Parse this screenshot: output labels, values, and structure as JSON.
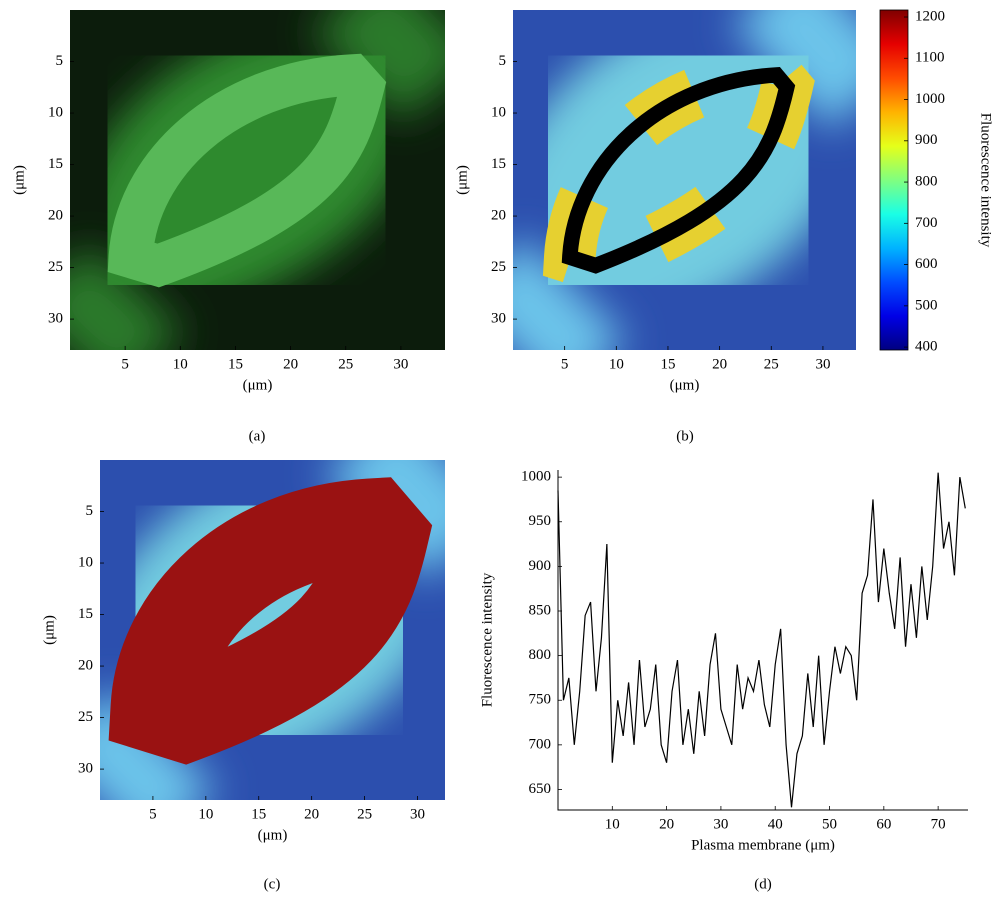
{
  "chart_data": [
    {
      "type": "image",
      "caption": "(a)",
      "xlabel": "(μm)",
      "ylabel": "(μm)",
      "xlim": [
        0,
        34
      ],
      "ylim": [
        0,
        33
      ],
      "xticks": [
        5,
        10,
        15,
        20,
        25,
        30
      ],
      "yticks": [
        5,
        10,
        15,
        20,
        25,
        30
      ]
    },
    {
      "type": "image",
      "caption": "(b)",
      "xlabel": "(μm)",
      "ylabel": "(μm)",
      "xlim": [
        0,
        33.2
      ],
      "ylim": [
        0,
        33
      ],
      "xticks": [
        5,
        10,
        15,
        20,
        25,
        30
      ],
      "yticks": [
        5,
        10,
        15,
        20,
        25,
        30
      ],
      "colorbar_label": "Fluorescence intensity",
      "colorbar_lim": [
        393,
        1217
      ],
      "colorbar_ticks": [
        400,
        500,
        600,
        700,
        800,
        900,
        1000,
        1100,
        1200
      ]
    },
    {
      "type": "image",
      "caption": "(c)",
      "xlabel": "(μm)",
      "ylabel": "(μm)",
      "xlim": [
        0,
        32.6
      ],
      "ylim": [
        0,
        33
      ],
      "xticks": [
        5,
        10,
        15,
        20,
        25,
        30
      ],
      "yticks": [
        5,
        10,
        15,
        20,
        25,
        30
      ]
    },
    {
      "type": "line",
      "caption": "(d)",
      "xlabel": "Plasma membrane (μm)",
      "ylabel": "Fluorescence intensity",
      "xlim": [
        0,
        75.5
      ],
      "ylim": [
        627,
        1008
      ],
      "xticks": [
        10,
        20,
        30,
        40,
        50,
        60,
        70
      ],
      "yticks": [
        650,
        700,
        750,
        800,
        850,
        900,
        950,
        1000
      ],
      "color": "#000000",
      "x": [
        0,
        1,
        2,
        3,
        4,
        5,
        6,
        7,
        8,
        9,
        10,
        11,
        12,
        13,
        14,
        15,
        16,
        17,
        18,
        19,
        20,
        21,
        22,
        23,
        24,
        25,
        26,
        27,
        28,
        29,
        30,
        31,
        32,
        33,
        34,
        35,
        36,
        37,
        38,
        39,
        40,
        41,
        42,
        43,
        44,
        45,
        46,
        47,
        48,
        49,
        50,
        51,
        52,
        53,
        54,
        55,
        56,
        57,
        58,
        59,
        60,
        61,
        62,
        63,
        64,
        65,
        66,
        67,
        68,
        69,
        70,
        71,
        72,
        73,
        74,
        75
      ],
      "values": [
        985,
        750,
        775,
        700,
        760,
        845,
        860,
        760,
        820,
        925,
        680,
        750,
        710,
        770,
        700,
        795,
        720,
        740,
        790,
        700,
        680,
        760,
        795,
        700,
        740,
        690,
        760,
        710,
        790,
        825,
        740,
        720,
        700,
        790,
        740,
        775,
        760,
        795,
        745,
        720,
        790,
        830,
        700,
        630,
        690,
        710,
        780,
        720,
        800,
        700,
        760,
        810,
        780,
        810,
        800,
        750,
        870,
        890,
        975,
        860,
        920,
        870,
        830,
        910,
        810,
        880,
        820,
        900,
        840,
        900,
        1005,
        920,
        950,
        890,
        1000,
        965
      ]
    }
  ]
}
